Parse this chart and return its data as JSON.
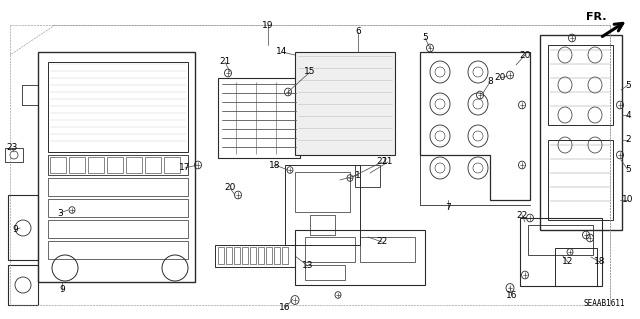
{
  "background_color": "#ffffff",
  "diagram_id": "SEAAB1611",
  "figsize": [
    6.4,
    3.19
  ],
  "dpi": 100,
  "image_data": "target_reproduction"
}
